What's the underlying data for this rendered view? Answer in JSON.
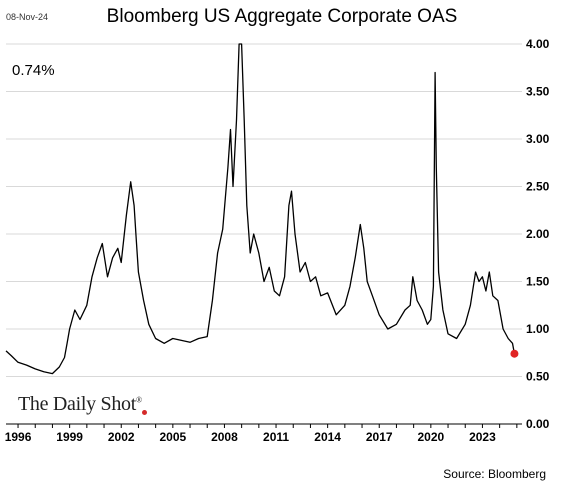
{
  "header": {
    "date": "08-Nov-24",
    "title": "Bloomberg US Aggregate Corporate OAS",
    "current_value": "0.74%"
  },
  "branding": {
    "name": "The Daily Shot",
    "reg": "®"
  },
  "footer": {
    "source": "Source: Bloomberg"
  },
  "colors": {
    "line": "#000000",
    "grid": "#d9d9d9",
    "marker": "#e02424",
    "background": "#ffffff"
  },
  "chart_data": {
    "type": "line",
    "title": "Bloomberg US Aggregate Corporate OAS",
    "xlabel": "",
    "ylabel": "",
    "xlim": [
      1995.3,
      2025.3
    ],
    "ylim": [
      0,
      4.0
    ],
    "y_ticks": [
      "0.00",
      "0.50",
      "1.00",
      "1.50",
      "2.00",
      "2.50",
      "3.00",
      "3.50",
      "4.00"
    ],
    "x_ticks": [
      {
        "year": 1996,
        "label": "1996"
      },
      {
        "year": 1999,
        "label": "1999"
      },
      {
        "year": 2002,
        "label": "2002"
      },
      {
        "year": 2005,
        "label": "2005"
      },
      {
        "year": 2008,
        "label": "2008"
      },
      {
        "year": 2011,
        "label": "2011"
      },
      {
        "year": 2014,
        "label": "2014"
      },
      {
        "year": 2017,
        "label": "2017"
      },
      {
        "year": 2020,
        "label": "2020"
      },
      {
        "year": 2023,
        "label": "2023"
      }
    ],
    "grid": true,
    "y_axis_side": "right",
    "series": [
      {
        "color": "#000000",
        "x": [
          1995.3,
          1995.6,
          1996.0,
          1996.5,
          1997.0,
          1997.5,
          1998.0,
          1998.4,
          1998.7,
          1998.85,
          1999.0,
          1999.3,
          1999.6,
          2000.0,
          2000.3,
          2000.6,
          2000.9,
          2001.2,
          2001.5,
          2001.8,
          2002.0,
          2002.3,
          2002.55,
          2002.75,
          2002.85,
          2003.0,
          2003.3,
          2003.6,
          2004.0,
          2004.5,
          2005.0,
          2005.5,
          2006.0,
          2006.5,
          2007.0,
          2007.3,
          2007.6,
          2007.9,
          2008.2,
          2008.35,
          2008.5,
          2008.7,
          2008.85,
          2009.0,
          2009.15,
          2009.3,
          2009.5,
          2009.7,
          2010.0,
          2010.3,
          2010.6,
          2010.9,
          2011.2,
          2011.5,
          2011.75,
          2011.9,
          2012.1,
          2012.4,
          2012.7,
          2013.0,
          2013.3,
          2013.6,
          2014.0,
          2014.5,
          2015.0,
          2015.3,
          2015.6,
          2015.9,
          2016.1,
          2016.3,
          2016.6,
          2017.0,
          2017.5,
          2018.0,
          2018.5,
          2018.8,
          2018.95,
          2019.2,
          2019.5,
          2019.8,
          2020.0,
          2020.15,
          2020.25,
          2020.32,
          2020.45,
          2020.7,
          2021.0,
          2021.5,
          2022.0,
          2022.3,
          2022.6,
          2022.8,
          2023.0,
          2023.2,
          2023.4,
          2023.6,
          2023.9,
          2024.2,
          2024.5,
          2024.75,
          2024.86
        ],
        "y": [
          0.77,
          0.72,
          0.65,
          0.62,
          0.58,
          0.55,
          0.53,
          0.6,
          0.7,
          0.85,
          1.0,
          1.2,
          1.1,
          1.25,
          1.55,
          1.75,
          1.9,
          1.55,
          1.75,
          1.85,
          1.7,
          2.2,
          2.55,
          2.3,
          2.0,
          1.6,
          1.3,
          1.05,
          0.9,
          0.85,
          0.9,
          0.88,
          0.86,
          0.9,
          0.92,
          1.3,
          1.8,
          2.05,
          2.7,
          3.1,
          2.5,
          3.2,
          4.0,
          4.2,
          3.2,
          2.3,
          1.8,
          2.0,
          1.8,
          1.5,
          1.65,
          1.4,
          1.35,
          1.55,
          2.3,
          2.45,
          2.0,
          1.6,
          1.7,
          1.5,
          1.55,
          1.35,
          1.38,
          1.15,
          1.25,
          1.45,
          1.75,
          2.1,
          1.85,
          1.5,
          1.35,
          1.15,
          1.0,
          1.05,
          1.2,
          1.25,
          1.55,
          1.3,
          1.2,
          1.05,
          1.1,
          1.45,
          3.7,
          2.7,
          1.6,
          1.2,
          0.95,
          0.9,
          1.05,
          1.25,
          1.6,
          1.5,
          1.55,
          1.4,
          1.6,
          1.35,
          1.3,
          1.0,
          0.9,
          0.85,
          0.74
        ]
      }
    ],
    "last_point": {
      "x": 2024.86,
      "y": 0.74
    }
  }
}
